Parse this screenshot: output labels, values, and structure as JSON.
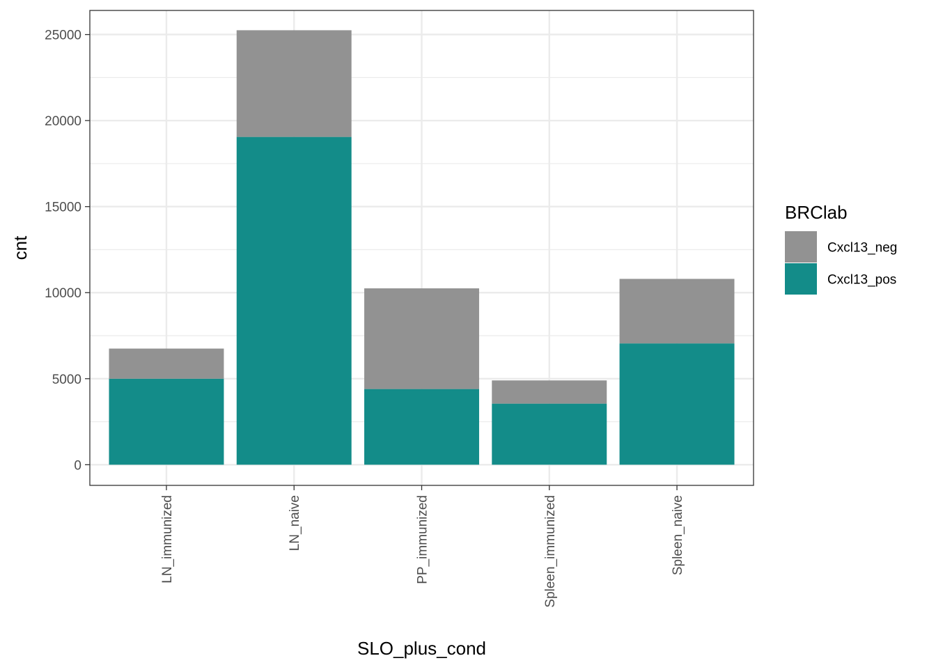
{
  "chart_data": {
    "type": "bar",
    "stacked": true,
    "xlabel": "SLO_plus_cond",
    "ylabel": "cnt",
    "categories": [
      "LN_immunized",
      "LN_naive",
      "PP_immunized",
      "Spleen_immunized",
      "Spleen_naive"
    ],
    "series": [
      {
        "name": "Cxcl13_neg",
        "values": [
          1750,
          6200,
          5850,
          1350,
          3750
        ],
        "color": "#929292"
      },
      {
        "name": "Cxcl13_pos",
        "values": [
          5000,
          19050,
          4400,
          3550,
          7050
        ],
        "color": "#138c89"
      }
    ],
    "ylim": [
      -1200,
      26400
    ],
    "yticks": [
      0,
      5000,
      10000,
      15000,
      20000,
      25000
    ],
    "ytick_labels": [
      "0",
      "5000",
      "10000",
      "15000",
      "20000",
      "25000"
    ],
    "grid": true,
    "legend": {
      "title": "BRClab",
      "position": "right",
      "items": [
        "Cxcl13_neg",
        "Cxcl13_pos"
      ]
    }
  }
}
